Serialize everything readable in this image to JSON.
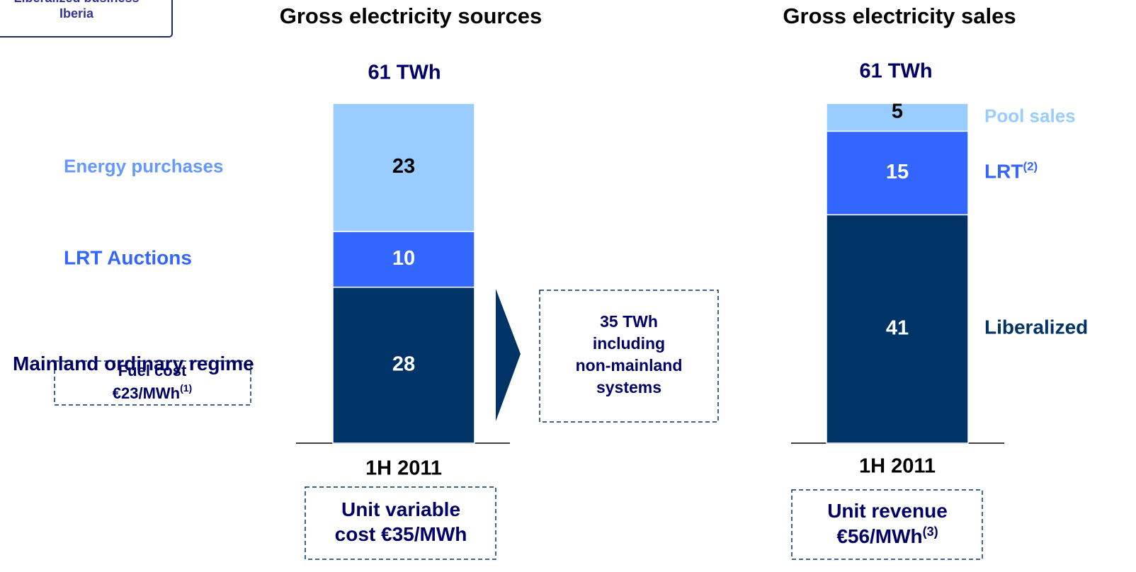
{
  "badge": {
    "lines": [
      "Liberalized business",
      "Iberia"
    ]
  },
  "chart_data": [
    {
      "type": "stacked_bar",
      "title": "Gross electricity sources",
      "total_label": "61 TWh",
      "categories": [
        "1H 2011"
      ],
      "series": [
        {
          "name": "Mainland ordinary regime",
          "color": "#003366",
          "label_color": "#000066",
          "value_label_color": "#ffffff",
          "values": [
            28
          ],
          "note": {
            "lines": [
              "Fuel cost",
              "€23/MWh"
            ],
            "sup": "(1)"
          }
        },
        {
          "name": "LRT Auctions",
          "color": "#3366ff",
          "label_color": "#3366ff",
          "value_label_color": "#ffffff",
          "values": [
            10
          ]
        },
        {
          "name": "Energy purchases",
          "color": "#99ccff",
          "label_color": "#6699ff",
          "value_label_color": "#000000",
          "values": [
            23
          ]
        }
      ],
      "note": {
        "lines": [
          "Unit variable",
          "cost €35/MWh"
        ]
      },
      "callout": {
        "lines": [
          "35 TWh",
          "including",
          "non-mainland",
          "systems"
        ]
      }
    },
    {
      "type": "stacked_bar",
      "title": "Gross electricity sales",
      "total_label": "61 TWh",
      "categories": [
        "1H 2011"
      ],
      "series": [
        {
          "name": "Liberalized",
          "color": "#003366",
          "label_color": "#003366",
          "value_label_color": "#ffffff",
          "values": [
            41
          ]
        },
        {
          "name": "LRT",
          "sup": "(2)",
          "color": "#3366ff",
          "label_color": "#3366ff",
          "value_label_color": "#ffffff",
          "values": [
            15
          ]
        },
        {
          "name": "Pool sales",
          "color": "#99ccff",
          "label_color": "#99ccff",
          "value_label_color": "#000000",
          "values": [
            5
          ]
        }
      ],
      "note": {
        "lines": [
          "Unit revenue",
          "€56/MWh"
        ],
        "sup": "(3)"
      }
    }
  ]
}
